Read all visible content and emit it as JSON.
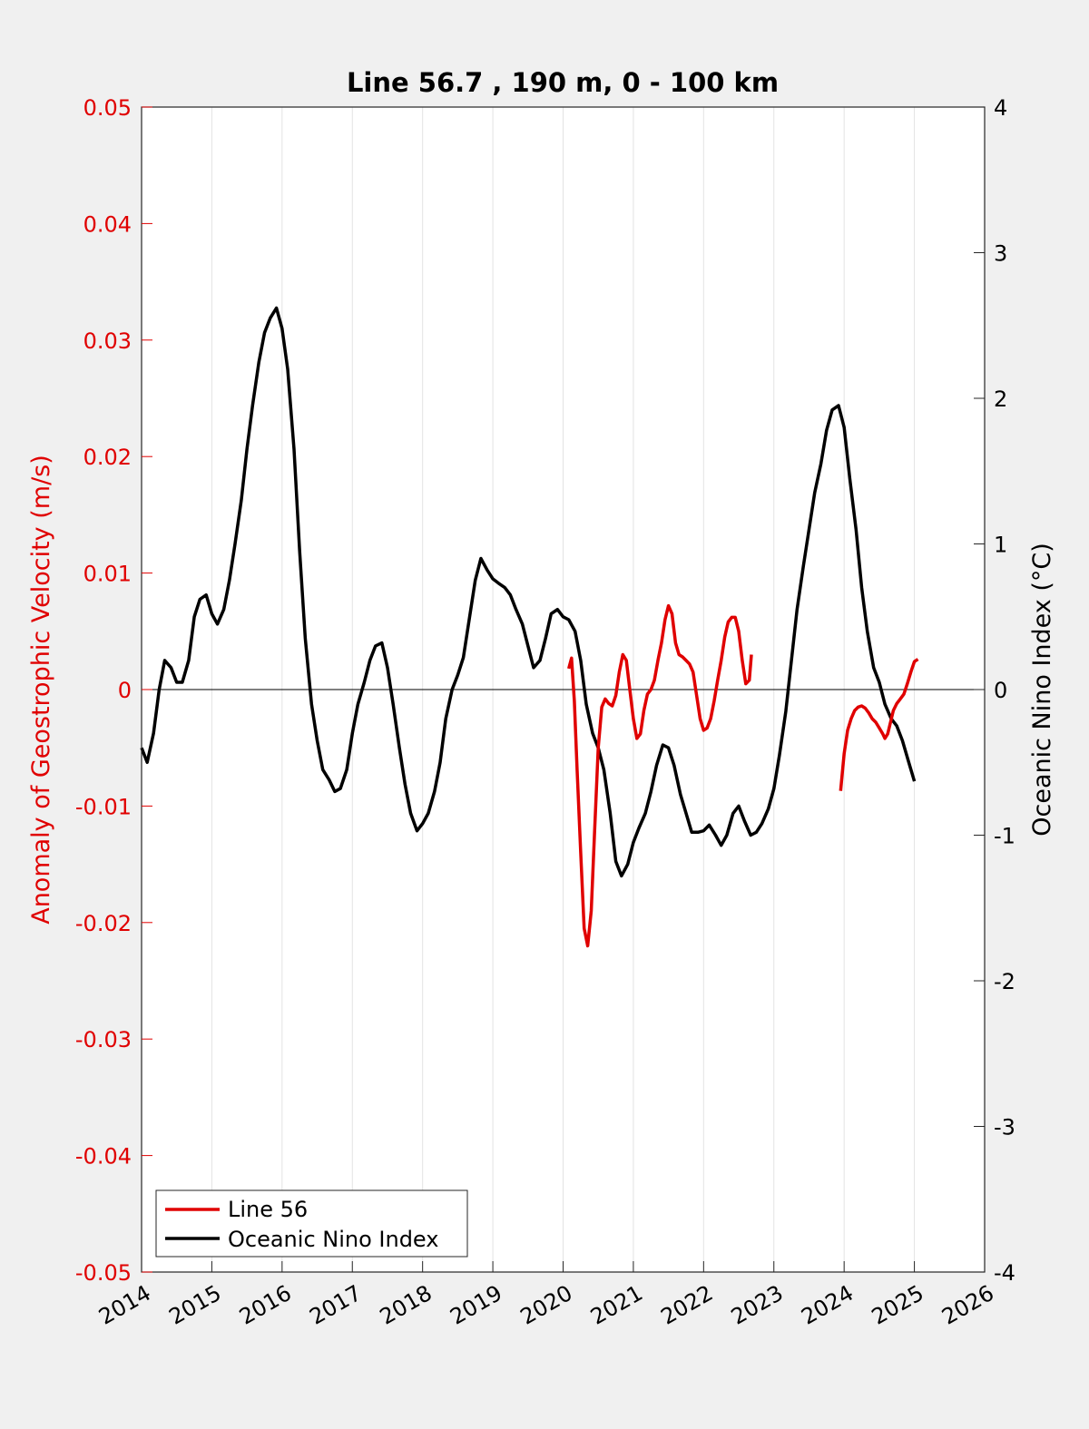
{
  "chart_data": {
    "type": "line",
    "title": "Line 56.7 , 190 m, 0 - 100 km",
    "ylabel": "Anomaly of Geostrophic Velocity (m/s)",
    "ylabel_right": "Oceanic Nino Index (°C)",
    "xlim": [
      2014,
      2026
    ],
    "ylim": [
      -0.05,
      0.05
    ],
    "ylim_right": [
      -4,
      4
    ],
    "x_ticks": [
      2014,
      2015,
      2016,
      2017,
      2018,
      2019,
      2020,
      2021,
      2022,
      2023,
      2024,
      2025,
      2026
    ],
    "x_tick_labels": [
      "2014",
      "2015",
      "2016",
      "2017",
      "2018",
      "2019",
      "2020",
      "2021",
      "2022",
      "2023",
      "2024",
      "2025",
      "2026"
    ],
    "y_tick_labels": [
      "0.05",
      "0.04",
      "0.03",
      "0.02",
      "0.01",
      "0",
      "-0.01",
      "-0.02",
      "-0.03",
      "-0.04",
      "-0.05"
    ],
    "y_ticks": [
      0.05,
      0.04,
      0.03,
      0.02,
      0.01,
      0,
      -0.01,
      -0.02,
      -0.03,
      -0.04,
      -0.05
    ],
    "y_right_tick_labels": [
      "4",
      "3",
      "2",
      "1",
      "0",
      "-1",
      "-2",
      "-3",
      "-4"
    ],
    "y_right_ticks": [
      4,
      3,
      2,
      1,
      0,
      -1,
      -2,
      -3,
      -4
    ],
    "grid": "x-only",
    "zero_line": true,
    "legend_position": "bottom-left",
    "series": [
      {
        "name": "Line 56",
        "color": "#e00000",
        "axis": "left",
        "segments": [
          [
            [
              2020.08,
              0.0018
            ],
            [
              2020.12,
              0.0027
            ],
            [
              2020.16,
              -0.001
            ],
            [
              2020.2,
              -0.007
            ],
            [
              2020.25,
              -0.014
            ],
            [
              2020.3,
              -0.0205
            ],
            [
              2020.35,
              -0.022
            ],
            [
              2020.4,
              -0.019
            ],
            [
              2020.45,
              -0.012
            ],
            [
              2020.5,
              -0.005
            ],
            [
              2020.55,
              -0.0015
            ],
            [
              2020.6,
              -0.0008
            ],
            [
              2020.65,
              -0.0012
            ],
            [
              2020.7,
              -0.0014
            ],
            [
              2020.75,
              -0.0005
            ],
            [
              2020.8,
              0.0015
            ],
            [
              2020.85,
              0.003
            ],
            [
              2020.9,
              0.0025
            ],
            [
              2020.95,
              0.0
            ],
            [
              2021.0,
              -0.0025
            ],
            [
              2021.05,
              -0.0042
            ],
            [
              2021.1,
              -0.0038
            ],
            [
              2021.15,
              -0.0018
            ],
            [
              2021.2,
              -0.0004
            ],
            [
              2021.25,
              0.0
            ],
            [
              2021.3,
              0.0008
            ],
            [
              2021.35,
              0.0025
            ],
            [
              2021.4,
              0.004
            ],
            [
              2021.45,
              0.006
            ],
            [
              2021.5,
              0.0072
            ],
            [
              2021.55,
              0.0065
            ],
            [
              2021.6,
              0.004
            ],
            [
              2021.65,
              0.003
            ],
            [
              2021.7,
              0.0028
            ],
            [
              2021.75,
              0.0025
            ],
            [
              2021.8,
              0.0022
            ],
            [
              2021.85,
              0.0015
            ],
            [
              2021.9,
              -0.0005
            ],
            [
              2021.95,
              -0.0025
            ],
            [
              2022.0,
              -0.0035
            ],
            [
              2022.05,
              -0.0033
            ],
            [
              2022.1,
              -0.0025
            ],
            [
              2022.15,
              -0.001
            ],
            [
              2022.2,
              0.0008
            ],
            [
              2022.25,
              0.0025
            ],
            [
              2022.3,
              0.0045
            ],
            [
              2022.35,
              0.0058
            ],
            [
              2022.4,
              0.0062
            ],
            [
              2022.45,
              0.0062
            ],
            [
              2022.5,
              0.005
            ],
            [
              2022.55,
              0.0025
            ],
            [
              2022.6,
              0.0005
            ],
            [
              2022.65,
              0.0008
            ],
            [
              2022.68,
              0.003
            ]
          ],
          [
            [
              2023.95,
              -0.0087
            ],
            [
              2024.0,
              -0.0055
            ],
            [
              2024.05,
              -0.0035
            ],
            [
              2024.1,
              -0.0025
            ],
            [
              2024.15,
              -0.0018
            ],
            [
              2024.2,
              -0.0015
            ],
            [
              2024.25,
              -0.0014
            ],
            [
              2024.3,
              -0.0016
            ],
            [
              2024.35,
              -0.002
            ],
            [
              2024.4,
              -0.0025
            ],
            [
              2024.45,
              -0.0028
            ],
            [
              2024.5,
              -0.0033
            ],
            [
              2024.55,
              -0.0038
            ],
            [
              2024.58,
              -0.0042
            ],
            [
              2024.62,
              -0.0038
            ],
            [
              2024.66,
              -0.0028
            ],
            [
              2024.7,
              -0.0018
            ],
            [
              2024.75,
              -0.0012
            ],
            [
              2024.8,
              -0.0008
            ],
            [
              2024.85,
              -0.0004
            ],
            [
              2024.9,
              0.0005
            ],
            [
              2024.95,
              0.0015
            ],
            [
              2025.0,
              0.0024
            ],
            [
              2025.05,
              0.0026
            ]
          ]
        ]
      },
      {
        "name": "Oceanic Nino Index",
        "color": "#000000",
        "axis": "right",
        "points": [
          [
            2014.0,
            -0.4
          ],
          [
            2014.08,
            -0.5
          ],
          [
            2014.17,
            -0.3
          ],
          [
            2014.25,
            0.0
          ],
          [
            2014.33,
            0.2
          ],
          [
            2014.42,
            0.15
          ],
          [
            2014.5,
            0.05
          ],
          [
            2014.58,
            0.05
          ],
          [
            2014.67,
            0.2
          ],
          [
            2014.75,
            0.5
          ],
          [
            2014.83,
            0.62
          ],
          [
            2014.92,
            0.65
          ],
          [
            2015.0,
            0.52
          ],
          [
            2015.08,
            0.45
          ],
          [
            2015.17,
            0.55
          ],
          [
            2015.25,
            0.75
          ],
          [
            2015.33,
            1.0
          ],
          [
            2015.42,
            1.3
          ],
          [
            2015.5,
            1.65
          ],
          [
            2015.58,
            1.95
          ],
          [
            2015.67,
            2.25
          ],
          [
            2015.75,
            2.45
          ],
          [
            2015.83,
            2.55
          ],
          [
            2015.92,
            2.62
          ],
          [
            2016.0,
            2.48
          ],
          [
            2016.08,
            2.2
          ],
          [
            2016.17,
            1.65
          ],
          [
            2016.25,
            0.95
          ],
          [
            2016.33,
            0.35
          ],
          [
            2016.42,
            -0.1
          ],
          [
            2016.5,
            -0.35
          ],
          [
            2016.58,
            -0.55
          ],
          [
            2016.67,
            -0.62
          ],
          [
            2016.75,
            -0.7
          ],
          [
            2016.83,
            -0.68
          ],
          [
            2016.92,
            -0.55
          ],
          [
            2017.0,
            -0.3
          ],
          [
            2017.08,
            -0.1
          ],
          [
            2017.17,
            0.05
          ],
          [
            2017.25,
            0.2
          ],
          [
            2017.33,
            0.3
          ],
          [
            2017.42,
            0.32
          ],
          [
            2017.5,
            0.15
          ],
          [
            2017.58,
            -0.1
          ],
          [
            2017.67,
            -0.4
          ],
          [
            2017.75,
            -0.65
          ],
          [
            2017.83,
            -0.85
          ],
          [
            2017.92,
            -0.97
          ],
          [
            2018.0,
            -0.92
          ],
          [
            2018.08,
            -0.85
          ],
          [
            2018.17,
            -0.7
          ],
          [
            2018.25,
            -0.5
          ],
          [
            2018.33,
            -0.2
          ],
          [
            2018.42,
            0.0
          ],
          [
            2018.5,
            0.1
          ],
          [
            2018.58,
            0.22
          ],
          [
            2018.67,
            0.5
          ],
          [
            2018.75,
            0.75
          ],
          [
            2018.83,
            0.9
          ],
          [
            2018.92,
            0.82
          ],
          [
            2019.0,
            0.76
          ],
          [
            2019.08,
            0.73
          ],
          [
            2019.17,
            0.7
          ],
          [
            2019.25,
            0.65
          ],
          [
            2019.33,
            0.55
          ],
          [
            2019.42,
            0.45
          ],
          [
            2019.5,
            0.3
          ],
          [
            2019.58,
            0.15
          ],
          [
            2019.67,
            0.2
          ],
          [
            2019.75,
            0.35
          ],
          [
            2019.83,
            0.52
          ],
          [
            2019.92,
            0.55
          ],
          [
            2020.0,
            0.5
          ],
          [
            2020.08,
            0.48
          ],
          [
            2020.17,
            0.4
          ],
          [
            2020.25,
            0.2
          ],
          [
            2020.33,
            -0.1
          ],
          [
            2020.42,
            -0.3
          ],
          [
            2020.5,
            -0.4
          ],
          [
            2020.58,
            -0.55
          ],
          [
            2020.67,
            -0.85
          ],
          [
            2020.75,
            -1.18
          ],
          [
            2020.83,
            -1.28
          ],
          [
            2020.92,
            -1.2
          ],
          [
            2021.0,
            -1.05
          ],
          [
            2021.08,
            -0.95
          ],
          [
            2021.17,
            -0.85
          ],
          [
            2021.25,
            -0.7
          ],
          [
            2021.33,
            -0.52
          ],
          [
            2021.42,
            -0.38
          ],
          [
            2021.5,
            -0.4
          ],
          [
            2021.58,
            -0.52
          ],
          [
            2021.67,
            -0.72
          ],
          [
            2021.75,
            -0.85
          ],
          [
            2021.83,
            -0.98
          ],
          [
            2021.92,
            -0.98
          ],
          [
            2022.0,
            -0.97
          ],
          [
            2022.08,
            -0.93
          ],
          [
            2022.17,
            -1.0
          ],
          [
            2022.25,
            -1.07
          ],
          [
            2022.33,
            -1.0
          ],
          [
            2022.42,
            -0.85
          ],
          [
            2022.5,
            -0.8
          ],
          [
            2022.58,
            -0.9
          ],
          [
            2022.67,
            -1.0
          ],
          [
            2022.75,
            -0.98
          ],
          [
            2022.83,
            -0.92
          ],
          [
            2022.92,
            -0.82
          ],
          [
            2023.0,
            -0.68
          ],
          [
            2023.08,
            -0.45
          ],
          [
            2023.17,
            -0.15
          ],
          [
            2023.25,
            0.2
          ],
          [
            2023.33,
            0.55
          ],
          [
            2023.42,
            0.85
          ],
          [
            2023.5,
            1.1
          ],
          [
            2023.58,
            1.35
          ],
          [
            2023.67,
            1.55
          ],
          [
            2023.75,
            1.78
          ],
          [
            2023.83,
            1.92
          ],
          [
            2023.92,
            1.95
          ],
          [
            2024.0,
            1.8
          ],
          [
            2024.08,
            1.45
          ],
          [
            2024.17,
            1.1
          ],
          [
            2024.25,
            0.7
          ],
          [
            2024.33,
            0.4
          ],
          [
            2024.42,
            0.15
          ],
          [
            2024.5,
            0.05
          ],
          [
            2024.58,
            -0.1
          ],
          [
            2024.67,
            -0.2
          ],
          [
            2024.75,
            -0.25
          ],
          [
            2024.83,
            -0.35
          ],
          [
            2024.92,
            -0.5
          ],
          [
            2025.0,
            -0.63
          ]
        ]
      }
    ]
  }
}
